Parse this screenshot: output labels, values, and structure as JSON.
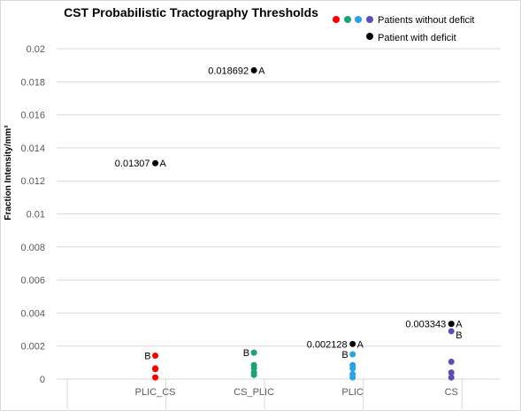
{
  "chart_data": {
    "type": "scatter",
    "title": "CST Probabilistic Tractography Thresholds",
    "ylabel": "Fraction Intensity/mm³",
    "xlabel": "",
    "categories": [
      "PLIC_CS",
      "CS_PLIC",
      "PLIC",
      "CS"
    ],
    "ylim": [
      0,
      0.02
    ],
    "yticks": [
      "0",
      "0.002",
      "0.004",
      "0.006",
      "0.008",
      "0.01",
      "0.012",
      "0.014",
      "0.016",
      "0.018",
      "0.02"
    ],
    "grid": true,
    "legend_position": "top-right",
    "legend": {
      "without_deficit": "Patients without deficit",
      "with_deficit": "Patient with deficit"
    },
    "colors": {
      "PLIC_CS": "#ff0000",
      "CS_PLIC": "#1aa37a",
      "PLIC": "#29a3e6",
      "CS": "#5b4fb3",
      "deficit": "#000000"
    },
    "series": [
      {
        "name": "Patients without deficit",
        "points": [
          {
            "x": "PLIC_CS",
            "y": 0.00142,
            "label": "B"
          },
          {
            "x": "PLIC_CS",
            "y": 0.00065,
            "label": ""
          },
          {
            "x": "PLIC_CS",
            "y": 0.0006,
            "label": ""
          },
          {
            "x": "PLIC_CS",
            "y": 0.0001,
            "label": ""
          },
          {
            "x": "CS_PLIC",
            "y": 0.0016,
            "label": "B"
          },
          {
            "x": "CS_PLIC",
            "y": 0.00085,
            "label": ""
          },
          {
            "x": "CS_PLIC",
            "y": 0.00065,
            "label": ""
          },
          {
            "x": "CS_PLIC",
            "y": 0.0004,
            "label": ""
          },
          {
            "x": "CS_PLIC",
            "y": 0.00025,
            "label": ""
          },
          {
            "x": "PLIC",
            "y": 0.0015,
            "label": "B"
          },
          {
            "x": "PLIC",
            "y": 0.00085,
            "label": ""
          },
          {
            "x": "PLIC",
            "y": 0.00065,
            "label": ""
          },
          {
            "x": "PLIC",
            "y": 0.0003,
            "label": ""
          },
          {
            "x": "PLIC",
            "y": 0.0001,
            "label": ""
          },
          {
            "x": "CS",
            "y": 0.0029,
            "label": "B"
          },
          {
            "x": "CS",
            "y": 0.00105,
            "label": ""
          },
          {
            "x": "CS",
            "y": 0.0004,
            "label": ""
          },
          {
            "x": "CS",
            "y": 0.0001,
            "label": ""
          }
        ]
      },
      {
        "name": "Patient with deficit",
        "points": [
          {
            "x": "PLIC_CS",
            "y": 0.01307,
            "value_label": "0.01307",
            "label": "A"
          },
          {
            "x": "CS_PLIC",
            "y": 0.018692,
            "value_label": "0.018692",
            "label": "A"
          },
          {
            "x": "PLIC",
            "y": 0.002128,
            "value_label": "0.002128",
            "label": "A"
          },
          {
            "x": "CS",
            "y": 0.003343,
            "value_label": "0.003343",
            "label": "A"
          }
        ]
      }
    ]
  }
}
